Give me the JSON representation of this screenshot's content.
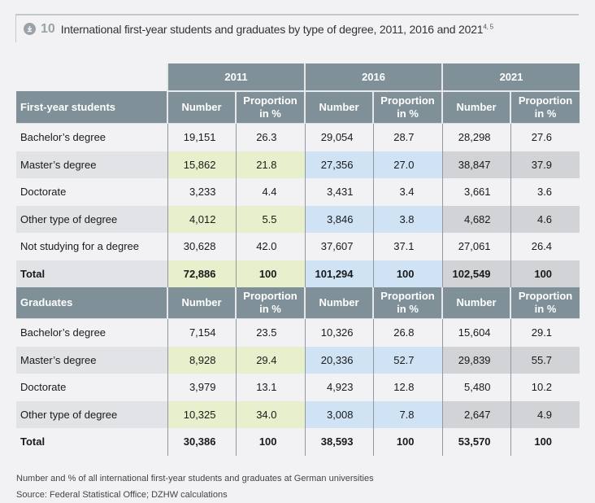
{
  "title": {
    "icon": "download-icon",
    "number": "10",
    "text": "International first-year students and graduates by type of degree, 2011, 2016 and 2021",
    "footnote_refs": "4, 5"
  },
  "table": {
    "years": [
      "2011",
      "2016",
      "2021"
    ],
    "number_header": "Number",
    "proportion_header": "Proportion in %",
    "colors": {
      "header": "#7f9099",
      "shade_label": "#e1e3e7",
      "shade_2011": "#e8efcc",
      "shade_2016": "#cfe3f5",
      "shade_2021": "#d2d3d6"
    },
    "sections": [
      {
        "title": "First-year students",
        "rows": [
          {
            "label": "Bachelor’s degree",
            "values": [
              "19,151",
              "26.3",
              "29,054",
              "28.7",
              "28,298",
              "27.6"
            ]
          },
          {
            "label": "Master’s degree",
            "values": [
              "15,862",
              "21.8",
              "27,356",
              "27.0",
              "38,847",
              "37.9"
            ]
          },
          {
            "label": "Doctorate",
            "values": [
              "3,233",
              "4.4",
              "3,431",
              "3.4",
              "3,661",
              "3.6"
            ]
          },
          {
            "label": "Other type of degree",
            "values": [
              "4,012",
              "5.5",
              "3,846",
              "3.8",
              "4,682",
              "4.6"
            ]
          },
          {
            "label": "Not studying for a degree",
            "values": [
              "30,628",
              "42.0",
              "37,607",
              "37.1",
              "27,061",
              "26.4"
            ]
          },
          {
            "label": "Total",
            "values": [
              "72,886",
              "100",
              "101,294",
              "100",
              "102,549",
              "100"
            ]
          }
        ]
      },
      {
        "title": "Graduates",
        "rows": [
          {
            "label": "Bachelor’s degree",
            "values": [
              "7,154",
              "23.5",
              "10,326",
              "26.8",
              "15,604",
              "29.1"
            ]
          },
          {
            "label": "Master’s degree",
            "values": [
              "8,928",
              "29.4",
              "20,336",
              "52.7",
              "29,839",
              "55.7"
            ]
          },
          {
            "label": "Doctorate",
            "values": [
              "3,979",
              "13.1",
              "4,923",
              "12.8",
              "5,480",
              "10.2"
            ]
          },
          {
            "label": "Other type of degree",
            "values": [
              "10,325",
              "34.0",
              "3,008",
              "7.8",
              "2,647",
              "4.9"
            ]
          },
          {
            "label": "Total",
            "values": [
              "30,386",
              "100",
              "38,593",
              "100",
              "53,570",
              "100"
            ]
          }
        ]
      }
    ]
  },
  "notes": {
    "description": "Number and % of all international first-year students and graduates at German universities",
    "source": "Source: Federal Statistical Office; DZHW calculations"
  }
}
